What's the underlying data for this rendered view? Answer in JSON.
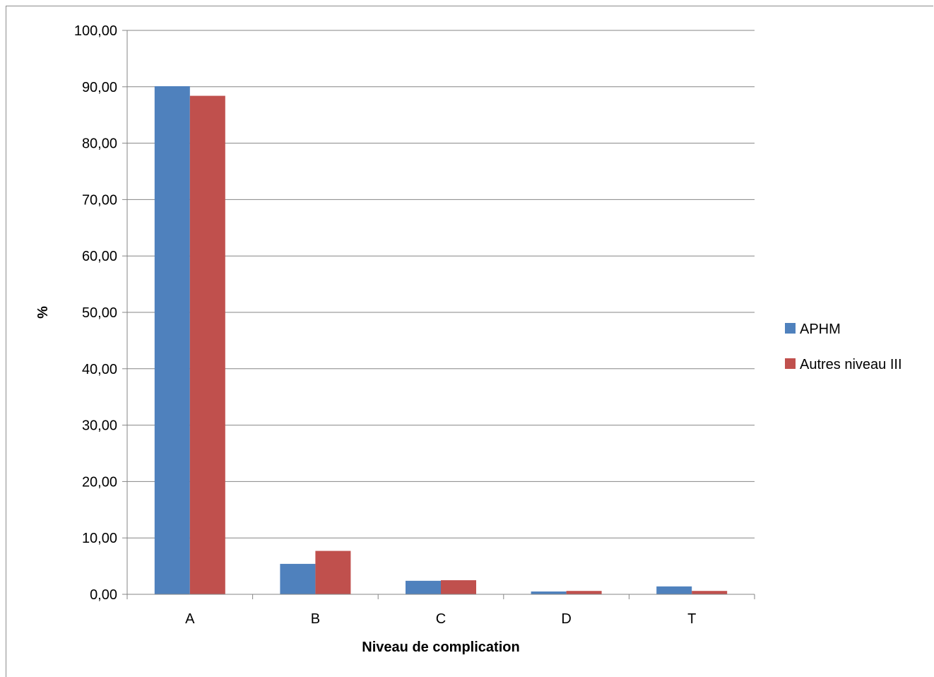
{
  "chart_data": {
    "type": "bar",
    "title": "",
    "xlabel": "Niveau de complication",
    "ylabel": "%",
    "ylim": [
      0,
      100
    ],
    "ytick_step": 10,
    "ytick_labels": [
      "0,00",
      "10,00",
      "20,00",
      "30,00",
      "40,00",
      "50,00",
      "60,00",
      "70,00",
      "80,00",
      "90,00",
      "100,00"
    ],
    "categories": [
      "A",
      "B",
      "C",
      "D",
      "T"
    ],
    "grid": true,
    "legend_position": "right",
    "series": [
      {
        "name": "APHM",
        "color": "#4f81bd",
        "values": [
          90.1,
          5.4,
          2.4,
          0.5,
          1.4
        ]
      },
      {
        "name": "Autres niveau III",
        "color": "#c0504d",
        "values": [
          88.4,
          7.7,
          2.5,
          0.6,
          0.6
        ]
      }
    ]
  }
}
